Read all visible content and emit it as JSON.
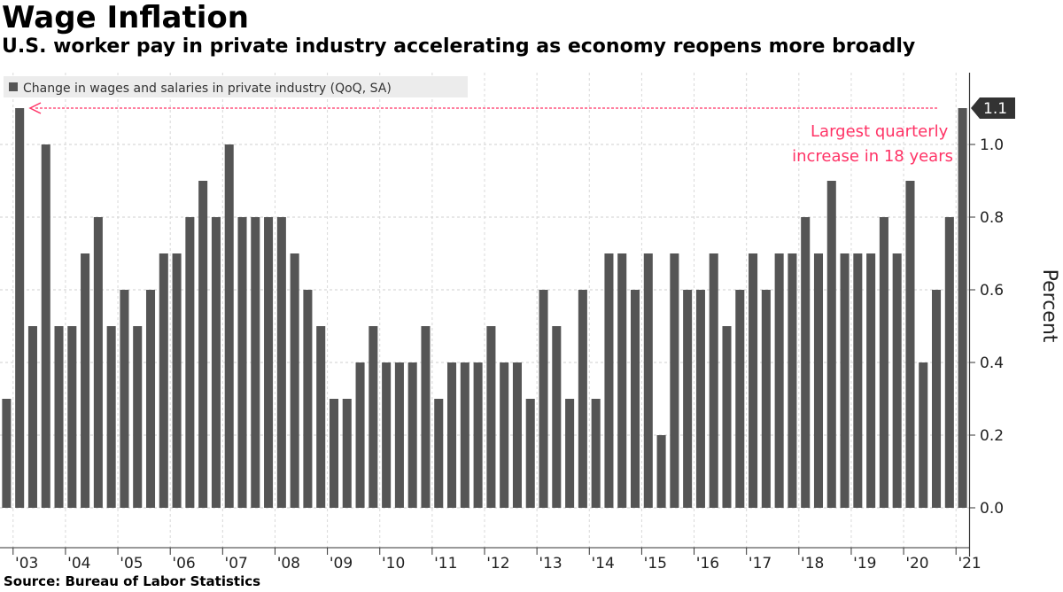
{
  "title": "Wage Inflation",
  "subtitle": "U.S. worker pay in private industry accelerating as economy reopens more broadly",
  "source": "Source:  Bureau of Labor Statistics",
  "colors": {
    "bar": "#555555",
    "annotation": "#ff3366",
    "legend_bg": "#ececec",
    "axis": "#333333"
  },
  "chart_data": {
    "type": "bar",
    "legend": [
      "Change in wages and salaries in private industry (QoQ, SA)"
    ],
    "legend_position": "top-left",
    "ylabel": "Percent",
    "ylim": [
      -0.1,
      1.2
    ],
    "yticks": [
      "0.0",
      "0.2",
      "0.4",
      "0.6",
      "0.8",
      "1.0"
    ],
    "ytick_values": [
      0.0,
      0.2,
      0.4,
      0.6,
      0.8,
      1.0
    ],
    "grid": true,
    "first_period": "2002-Q4",
    "xtick_labels": [
      "'03",
      "'04",
      "'05",
      "'06",
      "'07",
      "'08",
      "'09",
      "'10",
      "'11",
      "'12",
      "'13",
      "'14",
      "'15",
      "'16",
      "'17",
      "'18",
      "'19",
      "'20",
      "'21"
    ],
    "values": [
      0.3,
      1.1,
      0.5,
      1.0,
      0.5,
      0.5,
      0.7,
      0.8,
      0.5,
      0.6,
      0.5,
      0.6,
      0.7,
      0.7,
      0.8,
      0.9,
      0.8,
      1.0,
      0.8,
      0.8,
      0.8,
      0.8,
      0.7,
      0.6,
      0.5,
      0.3,
      0.3,
      0.4,
      0.5,
      0.4,
      0.4,
      0.4,
      0.5,
      0.3,
      0.4,
      0.4,
      0.4,
      0.5,
      0.4,
      0.4,
      0.3,
      0.6,
      0.5,
      0.3,
      0.6,
      0.3,
      0.7,
      0.7,
      0.6,
      0.7,
      0.2,
      0.7,
      0.6,
      0.6,
      0.7,
      0.5,
      0.6,
      0.7,
      0.6,
      0.7,
      0.7,
      0.8,
      0.7,
      0.9,
      0.7,
      0.7,
      0.7,
      0.8,
      0.7,
      0.9,
      0.4,
      0.6,
      0.8,
      1.1
    ],
    "last_value_label": "1.1",
    "annotation": {
      "text_lines": [
        "Largest quarterly",
        "increase in 18 years"
      ]
    }
  }
}
